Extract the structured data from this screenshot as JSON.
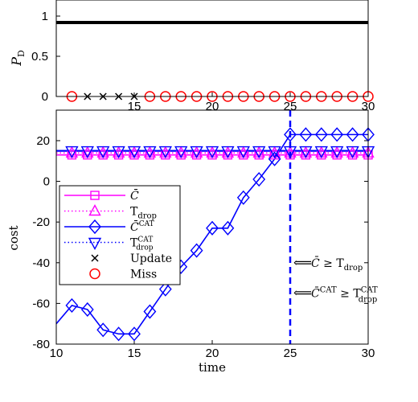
{
  "chart_data": [
    {
      "type": "line",
      "ylabel": "P_D",
      "xlim": [
        10,
        30
      ],
      "ylim": [
        0,
        1
      ],
      "x_ticks": [
        15,
        20,
        25,
        30
      ],
      "y_ticks": [
        "0",
        "0.5",
        "1"
      ],
      "series": [
        {
          "name": "P_D",
          "color": "#000000",
          "x": [
            10,
            30
          ],
          "values": [
            0.92,
            0.92
          ]
        }
      ],
      "update_markers": {
        "x": [
          12,
          13,
          14,
          15
        ],
        "y": 0,
        "color": "#000000"
      },
      "miss_markers": {
        "x": [
          11,
          16,
          17,
          18,
          19,
          20,
          21,
          22,
          23,
          24,
          25,
          26,
          27,
          28,
          29,
          30
        ],
        "y": 0,
        "color": "#ff0000"
      }
    },
    {
      "type": "line",
      "xlabel": "time",
      "ylabel": "cost",
      "xlim": [
        10,
        30
      ],
      "ylim": [
        -80,
        35
      ],
      "x_ticks": [
        "10",
        "15",
        "20",
        "25",
        "30"
      ],
      "y_ticks": [
        "-80",
        "-60",
        "-40",
        "-20",
        "0",
        "20"
      ],
      "x": [
        11,
        12,
        13,
        14,
        15,
        16,
        17,
        18,
        19,
        20,
        21,
        22,
        23,
        24,
        25,
        26,
        27,
        28,
        29,
        30
      ],
      "series": [
        {
          "name": "C̄",
          "color": "#ff00ff",
          "marker": "square",
          "values": [
            13,
            13,
            13,
            13,
            13,
            13,
            13,
            13,
            13,
            13,
            13,
            13,
            13,
            13,
            13,
            13,
            13,
            13,
            13,
            13
          ]
        },
        {
          "name": "T_drop",
          "color": "#ff00ff",
          "marker": "triangle-up",
          "dotted": true,
          "values": [
            14,
            14,
            14,
            14,
            14,
            14,
            14,
            14,
            14,
            14,
            14,
            14,
            14,
            14,
            14,
            14,
            14,
            14,
            14,
            14
          ]
        },
        {
          "name": "C̄^CAT",
          "color": "#0000ff",
          "marker": "diamond",
          "line_start": {
            "x": 10,
            "y": -70
          },
          "values": [
            -61,
            -63,
            -73,
            -75,
            -75,
            -64,
            -53,
            -42,
            -34,
            -23,
            -23,
            -8,
            1,
            11,
            23,
            23,
            23,
            23,
            23,
            23
          ]
        },
        {
          "name": "T_drop^CAT",
          "color": "#0000ff",
          "marker": "triangle-down",
          "dotted": true,
          "values": [
            15,
            15,
            15,
            15,
            15,
            15,
            15,
            15,
            15,
            15,
            15,
            15,
            15,
            15,
            15,
            15,
            15,
            15,
            15,
            15
          ]
        }
      ],
      "legend": {
        "placement": "left",
        "entries": [
          {
            "label": "C̄",
            "symbol": "square",
            "color": "#ff00ff"
          },
          {
            "label": "T",
            "sub": "drop",
            "symbol": "triangle-up",
            "color": "#ff00ff",
            "dotted": true
          },
          {
            "label": "C̄",
            "sup": "CAT",
            "symbol": "diamond",
            "color": "#0000ff"
          },
          {
            "label": "T",
            "sup": "CAT",
            "sub": "drop",
            "symbol": "triangle-down",
            "color": "#0000ff",
            "dotted": true
          },
          {
            "label": "Update",
            "symbol": "x",
            "color": "#000000"
          },
          {
            "label": "Miss",
            "symbol": "circle",
            "color": "#ff0000"
          }
        ]
      },
      "vline": {
        "x": 25,
        "color": "#0000ff",
        "style": "dashed"
      },
      "annotations": [
        {
          "text": "C̄ ≥ T",
          "sub": "drop",
          "y": -40
        },
        {
          "text": "C̄",
          "sup1": "CAT",
          "text2": " ≥ T",
          "sup2": "CAT",
          "sub2": "drop",
          "y": -55
        }
      ]
    }
  ]
}
